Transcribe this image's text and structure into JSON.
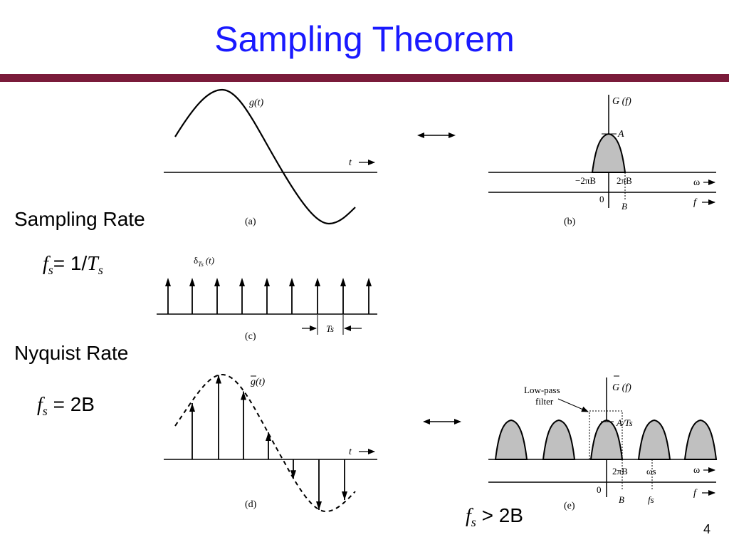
{
  "title": "Sampling Theorem",
  "page_number": "4",
  "sections": {
    "sampling_rate": "Sampling Rate",
    "nyquist_rate": "Nyquist Rate"
  },
  "formulas": {
    "fs_def": {
      "var": "f",
      "sub": "s",
      "eq": "= 1/",
      "var2": "T",
      "sub2": "s"
    },
    "fs_nyquist": {
      "var": "f",
      "sub": "s",
      "eq": " = 2B"
    },
    "fs_gt": {
      "var": "f",
      "sub": "s",
      "eq": " > 2B"
    }
  },
  "figures": {
    "a": {
      "caption": "(a)",
      "signal_label": "g(t)",
      "axis_label": "t"
    },
    "b": {
      "caption": "(b)",
      "signal_label": "G (f)",
      "peak_label": "A",
      "neg_band": "−2πB",
      "pos_band": "2πB",
      "zero": "0",
      "b_label": "B",
      "omega_axis": "ω",
      "f_axis": "f"
    },
    "c": {
      "caption": "(c)",
      "signal_label": "δ",
      "signal_sub": "Ts",
      "signal_arg": "(t)",
      "period_label": "Ts"
    },
    "d": {
      "caption": "(d)",
      "signal_label": "g(t)",
      "axis_label": "t"
    },
    "e": {
      "caption": "(e)",
      "signal_label": "G (f)",
      "peak_label": "A/Ts",
      "filter_label_1": "Low-pass",
      "filter_label_2": "filter",
      "band_label": "2πB",
      "omega_s": "ωs",
      "zero": "0",
      "b_label": "B",
      "fs_label": "fs",
      "omega_axis": "ω",
      "f_axis": "f"
    }
  },
  "colors": {
    "title": "#1a1aff",
    "rule": "#7a1b3a",
    "spectrum_fill": "#c0c0c0"
  }
}
